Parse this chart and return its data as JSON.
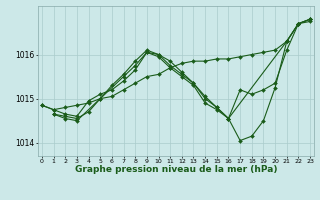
{
  "bg_color": "#cce8e8",
  "grid_color": "#aacccc",
  "line_color": "#1a5c1a",
  "marker_color": "#1a5c1a",
  "xlabel": "Graphe pression niveau de la mer (hPa)",
  "xlabel_fontsize": 6.5,
  "yticks": [
    1014,
    1015,
    1016
  ],
  "xticks": [
    0,
    1,
    2,
    3,
    4,
    5,
    6,
    7,
    8,
    9,
    10,
    11,
    12,
    13,
    14,
    15,
    16,
    17,
    18,
    19,
    20,
    21,
    22,
    23
  ],
  "xlim": [
    -0.3,
    23.3
  ],
  "ylim": [
    1013.7,
    1017.1
  ],
  "lines": [
    {
      "x": [
        0,
        1,
        2,
        3,
        4,
        5,
        6,
        7,
        8,
        9,
        10,
        11,
        12,
        13,
        14,
        15,
        16,
        17,
        18,
        19,
        20,
        21,
        22,
        23
      ],
      "y": [
        1014.85,
        1014.75,
        1014.8,
        1014.85,
        1014.9,
        1015.0,
        1015.05,
        1015.2,
        1015.35,
        1015.5,
        1015.55,
        1015.7,
        1015.8,
        1015.85,
        1015.85,
        1015.9,
        1015.9,
        1015.95,
        1016.0,
        1016.05,
        1016.1,
        1016.3,
        1016.7,
        1016.75
      ]
    },
    {
      "x": [
        1,
        2,
        3,
        4,
        5,
        6,
        7,
        8,
        9,
        10,
        11,
        12,
        13,
        14,
        15,
        16,
        21,
        22,
        23
      ],
      "y": [
        1014.65,
        1014.6,
        1014.55,
        1014.7,
        1015.0,
        1015.3,
        1015.55,
        1015.85,
        1016.1,
        1016.0,
        1015.85,
        1015.6,
        1015.35,
        1015.05,
        1014.8,
        1014.55,
        1016.3,
        1016.7,
        1016.8
      ]
    },
    {
      "x": [
        1,
        2,
        3,
        7,
        8,
        9,
        10,
        11,
        12,
        13,
        14,
        15,
        16,
        17,
        18,
        19,
        20,
        21,
        22,
        23
      ],
      "y": [
        1014.65,
        1014.55,
        1014.5,
        1015.5,
        1015.75,
        1016.05,
        1015.95,
        1015.7,
        1015.5,
        1015.3,
        1014.9,
        1014.75,
        1014.55,
        1014.05,
        1014.15,
        1014.5,
        1015.25,
        1016.3,
        1016.7,
        1016.8
      ]
    },
    {
      "x": [
        0,
        1,
        2,
        3,
        4,
        5,
        6,
        7,
        8,
        9,
        10,
        11,
        12,
        13,
        14,
        15,
        16,
        17,
        18,
        19,
        20,
        21,
        22,
        23
      ],
      "y": [
        1014.85,
        1014.75,
        1014.65,
        1014.6,
        1014.95,
        1015.1,
        1015.2,
        1015.4,
        1015.65,
        1016.05,
        1016.0,
        1015.75,
        1015.55,
        1015.35,
        1015.0,
        1014.8,
        1014.55,
        1015.2,
        1015.1,
        1015.2,
        1015.35,
        1016.1,
        1016.7,
        1016.8
      ]
    }
  ]
}
